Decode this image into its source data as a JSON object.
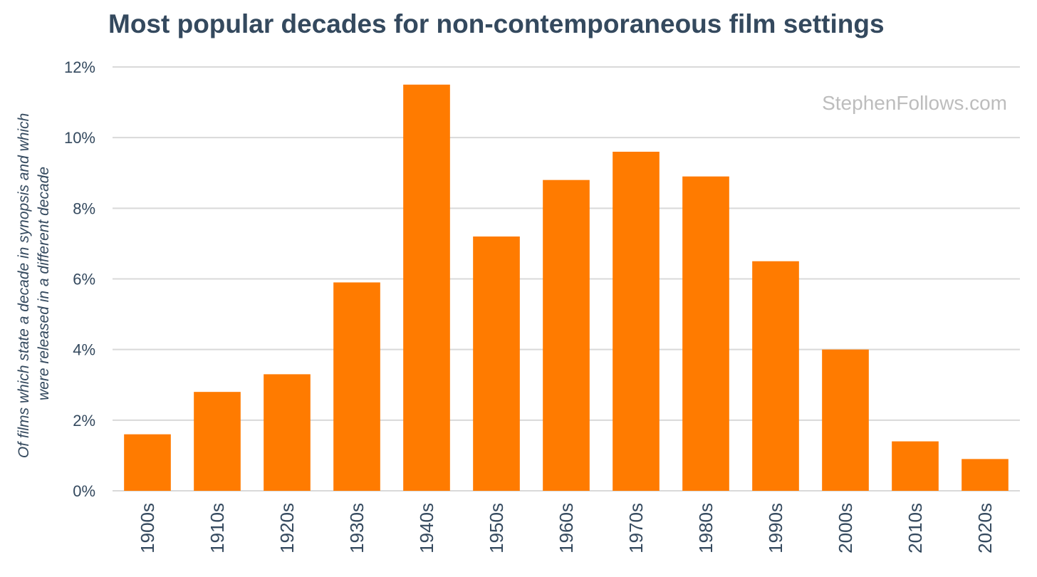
{
  "chart_data": {
    "type": "bar",
    "title": "Most popular decades for non-contemporaneous film settings",
    "ylabel": "Of films which state a decade in synopsis and which were released in a different decade",
    "ylabel_lines": [
      "Of films which state a decade in synopsis and which",
      "were released in a different decade"
    ],
    "xlabel": "",
    "categories": [
      "1900s",
      "1910s",
      "1920s",
      "1930s",
      "1940s",
      "1950s",
      "1960s",
      "1970s",
      "1980s",
      "1990s",
      "2000s",
      "2010s",
      "2020s"
    ],
    "values": [
      1.6,
      2.8,
      3.3,
      5.9,
      11.5,
      7.2,
      8.8,
      9.6,
      8.9,
      6.5,
      4.0,
      1.4,
      0.9
    ],
    "unit": "%",
    "ylim": [
      0,
      12
    ],
    "yticks": [
      "0%",
      "2%",
      "4%",
      "6%",
      "8%",
      "10%",
      "12%"
    ],
    "grid": true,
    "legend": "none",
    "bar_color": "#ff7b00",
    "gridline_color": "#d9d9d9",
    "text_color": "#34495e",
    "watermark": "StephenFollows.com",
    "watermark_color": "#bdbdbd"
  }
}
